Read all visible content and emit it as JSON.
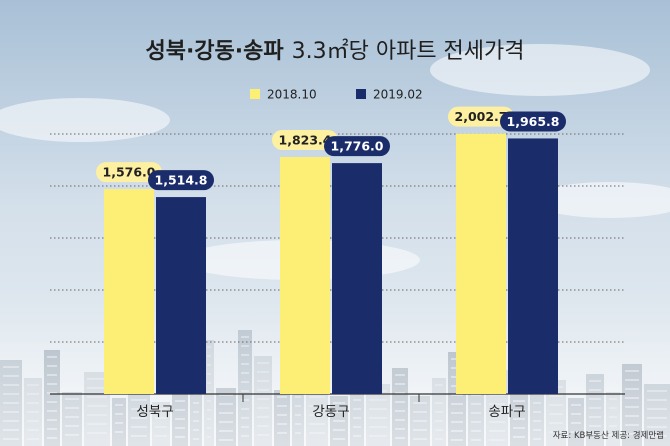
{
  "chart_data": {
    "type": "bar",
    "title_bold": "성북·강동·송파",
    "title_rest": "3.3㎡당 아파트 전세가격",
    "categories": [
      "성북구",
      "강동구",
      "송파구"
    ],
    "series": [
      {
        "name": "2018.10",
        "values": [
          1576.0,
          1823.4,
          2002.7
        ],
        "labels": [
          "1,576.0",
          "1,823.4",
          "2,002.7"
        ],
        "color": "#FDEF75",
        "label_bg": "#FDF0A0",
        "label_fg": "#222222"
      },
      {
        "name": "2019.02",
        "values": [
          1514.8,
          1776.0,
          1965.8
        ],
        "labels": [
          "1,514.8",
          "1,776.0",
          "1,965.8"
        ],
        "color": "#1B2C6B",
        "label_bg": "#1B2C6B",
        "label_fg": "#FFFFFF"
      }
    ],
    "ylim": [
      0,
      2300
    ],
    "grid": true,
    "legend": "top-center",
    "source": "자료: KB부동산  제공: 경제만랩"
  },
  "colors": {
    "sky_top": "#9DB6CF",
    "sky_bottom": "#EEF3F7",
    "title": "#1F1F1F"
  }
}
